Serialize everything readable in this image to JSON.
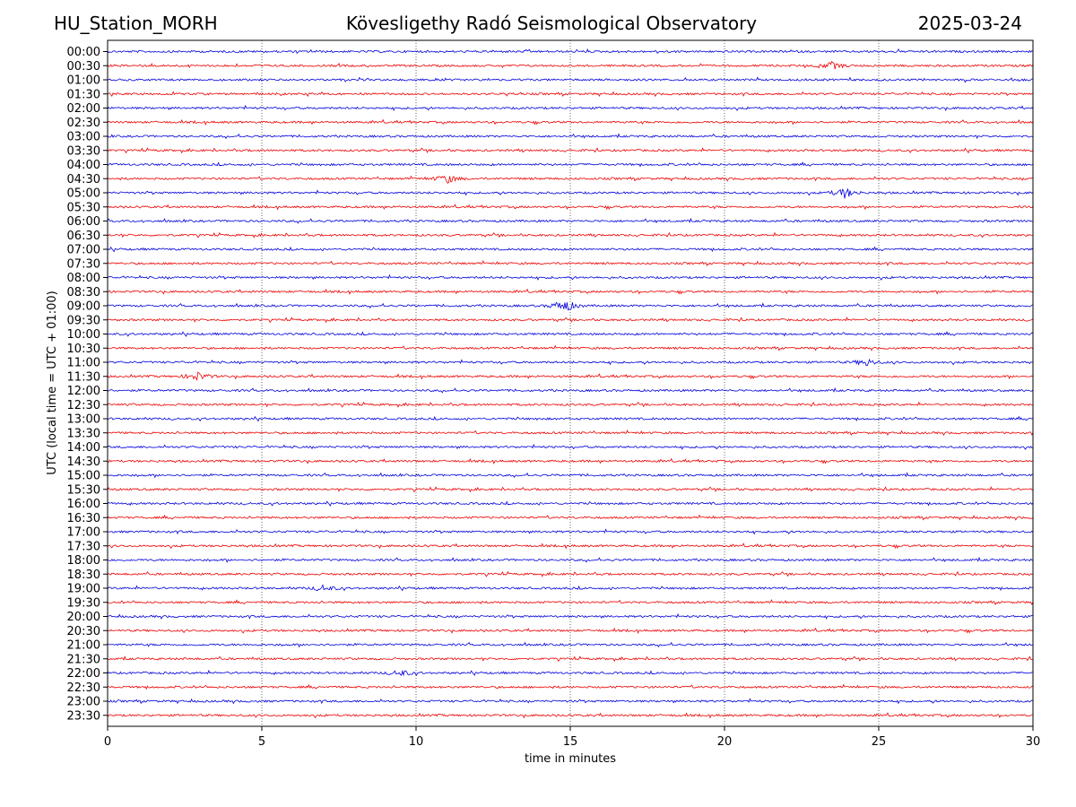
{
  "header": {
    "station": "HU_Station_MORH",
    "observatory": "Kövesligethy Radó Seismological Observatory",
    "date": "2025-03-24"
  },
  "chart_data": {
    "type": "line",
    "title": "Kövesligethy Radó Seismological Observatory",
    "xlabel": "time in minutes",
    "ylabel": "UTC (local time = UTC + 01:00)",
    "xlim": [
      0,
      30
    ],
    "xticks": [
      0,
      5,
      10,
      15,
      20,
      25,
      30
    ],
    "xgrid": [
      5,
      10,
      15,
      20,
      25
    ],
    "grid": "vertical dotted",
    "row_labels": [
      "00:00",
      "00:30",
      "01:00",
      "01:30",
      "02:00",
      "02:30",
      "03:00",
      "03:30",
      "04:00",
      "04:30",
      "05:00",
      "05:30",
      "06:00",
      "06:30",
      "07:00",
      "07:30",
      "08:00",
      "08:30",
      "09:00",
      "09:30",
      "10:00",
      "10:30",
      "11:00",
      "11:30",
      "12:00",
      "12:30",
      "13:00",
      "13:30",
      "14:00",
      "14:30",
      "15:00",
      "15:30",
      "16:00",
      "16:30",
      "17:00",
      "17:30",
      "18:00",
      "18:30",
      "19:00",
      "19:30",
      "20:00",
      "20:30",
      "21:00",
      "21:30",
      "22:00",
      "22:30",
      "23:00",
      "23:30"
    ],
    "trace_colors": [
      "#0000dd",
      "#ee0000"
    ],
    "events": [
      {
        "row": "00:30",
        "minute": 23.5,
        "strength": 0.5
      },
      {
        "row": "04:30",
        "minute": 11.0,
        "strength": 0.6
      },
      {
        "row": "05:00",
        "minute": 23.9,
        "strength": 0.7
      },
      {
        "row": "09:00",
        "minute": 14.8,
        "strength": 1.0
      },
      {
        "row": "11:00",
        "minute": 24.6,
        "strength": 0.5
      },
      {
        "row": "11:30",
        "minute": 2.9,
        "strength": 0.6
      },
      {
        "row": "19:00",
        "minute": 7.0,
        "strength": 0.4
      },
      {
        "row": "22:00",
        "minute": 9.5,
        "strength": 0.4
      }
    ]
  }
}
